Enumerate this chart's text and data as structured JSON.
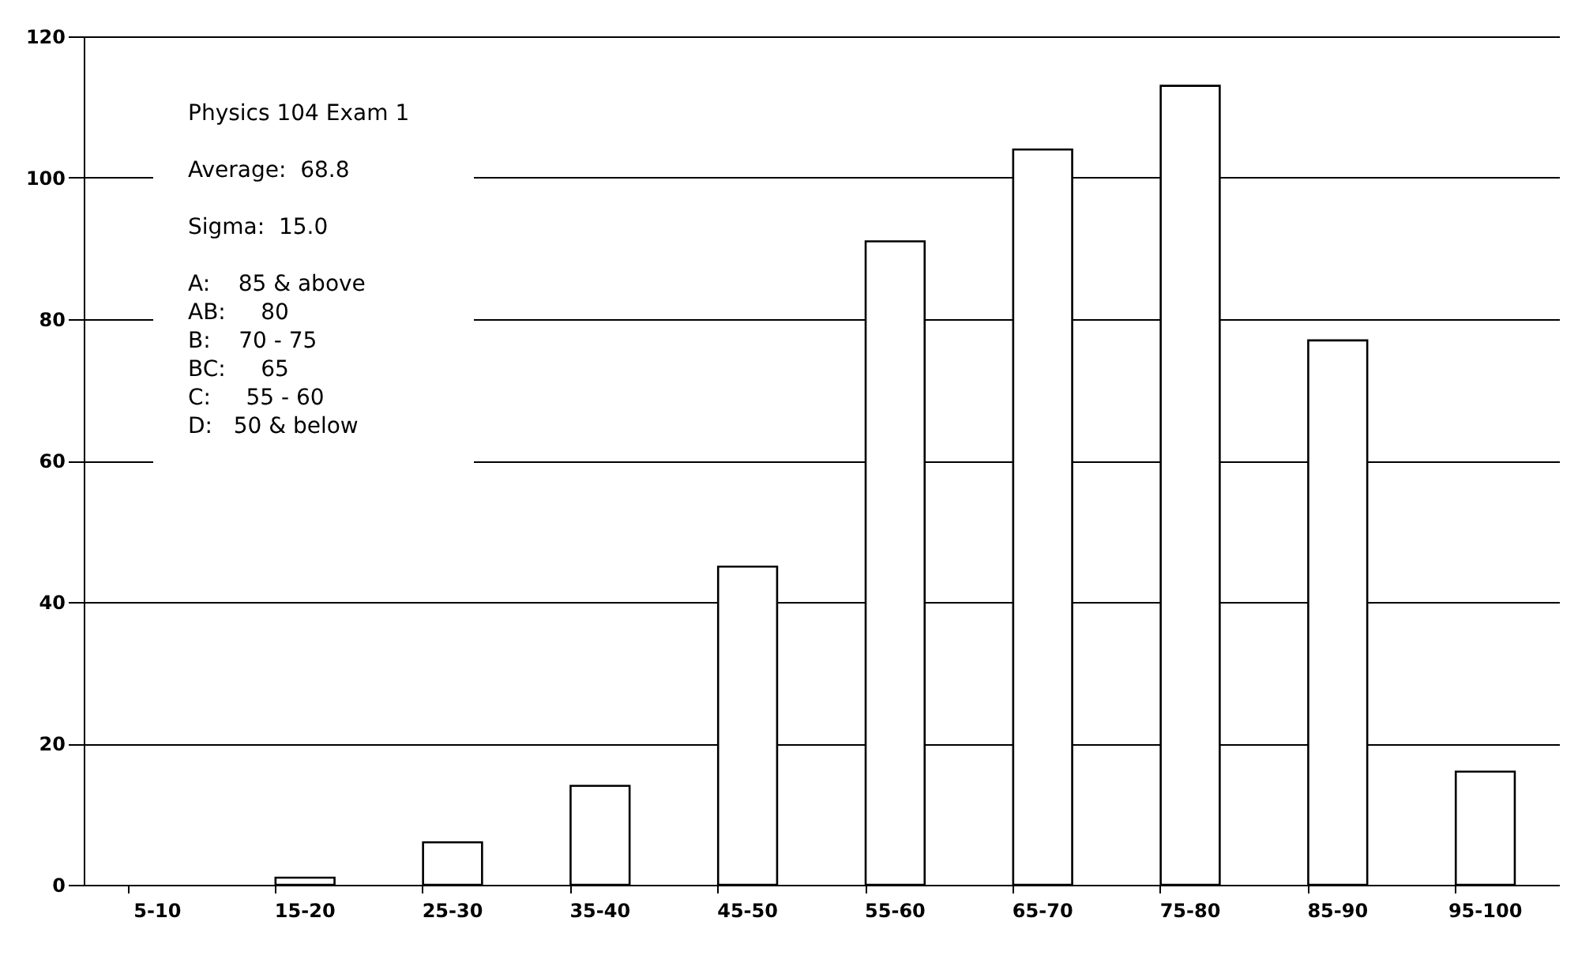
{
  "chart_data": {
    "type": "bar",
    "title": "Physics 104 Exam 1",
    "annotations": [
      "Average:  68.8",
      "Sigma:  15.0",
      "A:    85 & above\nAB:     80\nB:    70 - 75\nBC:     65\nC:     55 - 60\nD:   50 & below"
    ],
    "categories": [
      "5-10",
      "15-20",
      "25-30",
      "35-40",
      "45-50",
      "55-60",
      "65-70",
      "75-80",
      "85-90",
      "95-100"
    ],
    "values": [
      null,
      1,
      6,
      14,
      45,
      91,
      104,
      113,
      77,
      16
    ],
    "color": "#ffffff",
    "ylim": [
      0,
      120
    ],
    "yticks": [
      0,
      20,
      40,
      60,
      80,
      100,
      120
    ],
    "grid": "y"
  }
}
